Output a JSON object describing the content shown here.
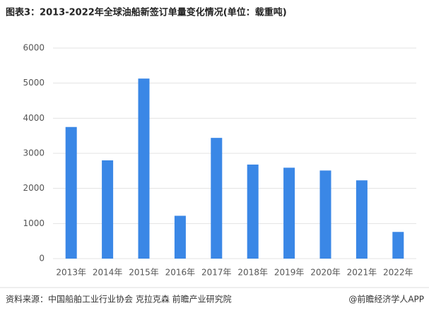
{
  "chart_data": {
    "type": "bar",
    "title": "图表3：2013-2022年全球油船新签订单量变化情况(单位：载重吨)",
    "categories": [
      "2013年",
      "2014年",
      "2015年",
      "2016年",
      "2017年",
      "2018年",
      "2019年",
      "2020年",
      "2021年",
      "2022年"
    ],
    "values": [
      3750,
      2800,
      5130,
      1220,
      3440,
      2680,
      2590,
      2510,
      2230,
      760
    ],
    "color": "#3a87e6",
    "ylim": [
      0,
      6000
    ],
    "yticks": [
      0,
      1000,
      2000,
      3000,
      4000,
      5000,
      6000
    ],
    "grid": true,
    "source": "资料来源：中国船舶工业行业协会 克拉克森 前瞻产业研究院",
    "credit": "@前瞻经济学人APP"
  }
}
